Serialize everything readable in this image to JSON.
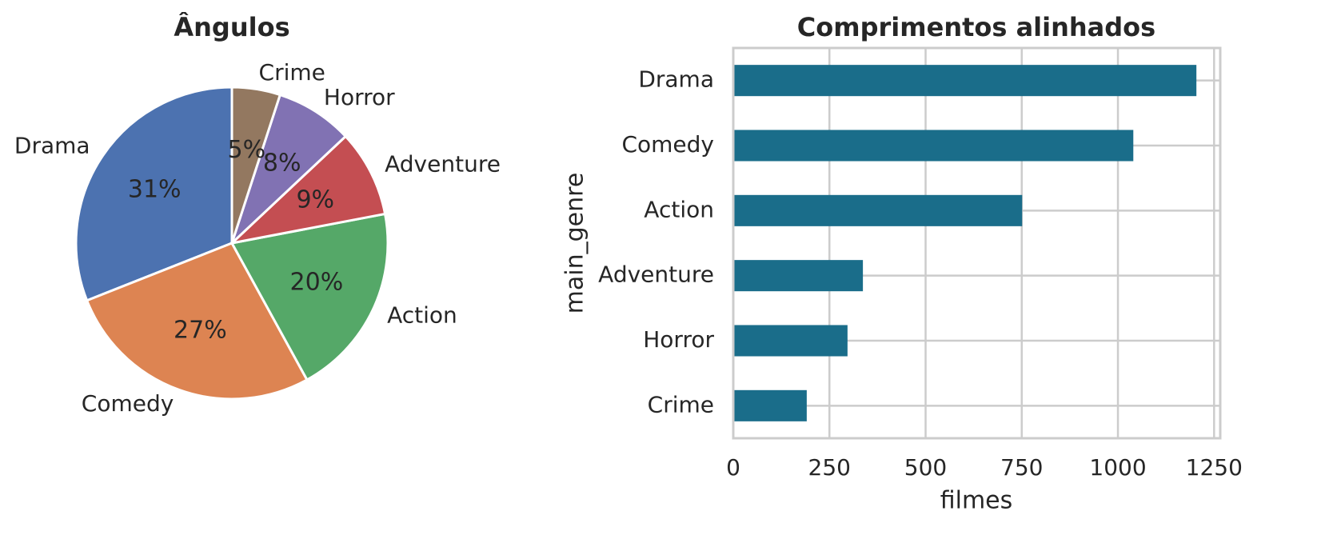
{
  "chart_data": [
    {
      "type": "pie",
      "title": "Ângulos",
      "categories": [
        "Drama",
        "Comedy",
        "Action",
        "Adventure",
        "Horror",
        "Crime"
      ],
      "values": [
        31,
        27,
        20,
        9,
        8,
        5
      ],
      "value_labels": [
        "31%",
        "27%",
        "20%",
        "9%",
        "8%",
        "5%"
      ],
      "colors": [
        "#4c72b0",
        "#dd8452",
        "#55a868",
        "#c44e52",
        "#8172b3",
        "#937860"
      ],
      "start_angle": 90
    },
    {
      "type": "barh",
      "title": "Comprimentos alinhados",
      "categories": [
        "Drama",
        "Comedy",
        "Action",
        "Adventure",
        "Horror",
        "Crime"
      ],
      "values": [
        1204,
        1040,
        751,
        337,
        297,
        191
      ],
      "color": "#1a6d8a",
      "xlabel": "filmes",
      "ylabel": "main_genre",
      "xlim": [
        0,
        1266
      ],
      "xticks": [
        0,
        250,
        500,
        750,
        1000,
        1250
      ],
      "grid": true
    }
  ]
}
